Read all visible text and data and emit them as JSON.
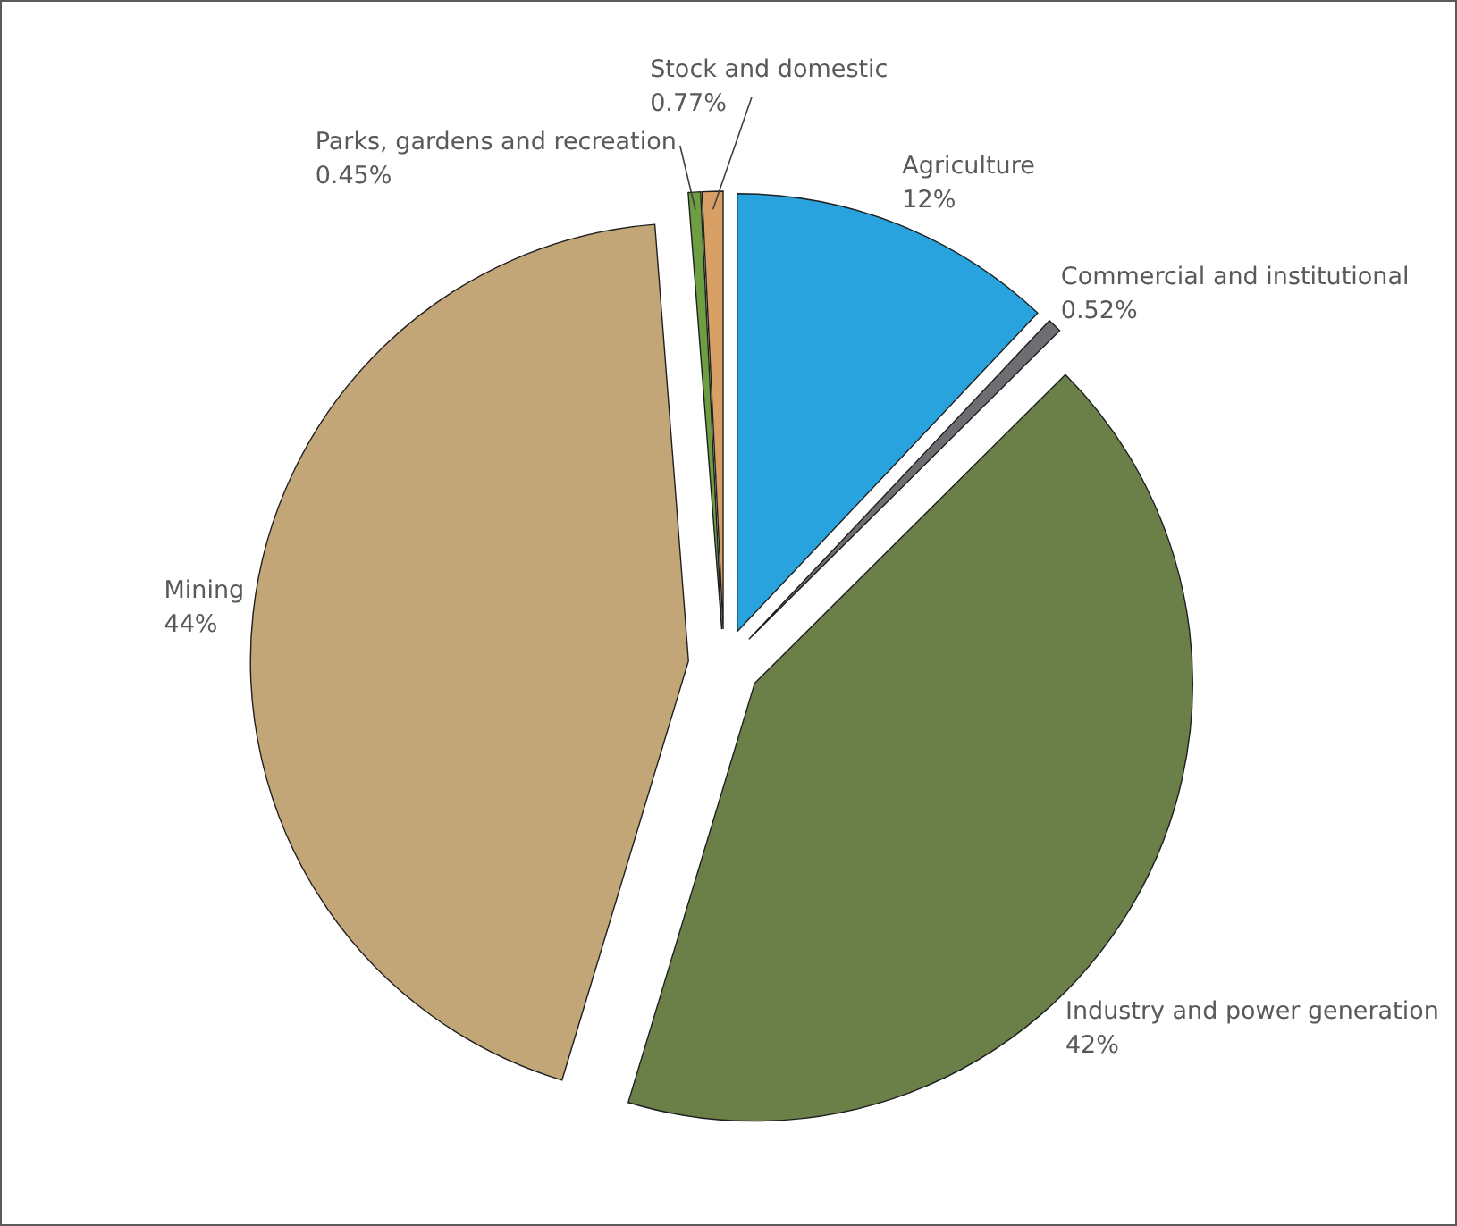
{
  "chart_data": {
    "type": "pie",
    "categories": [
      "Agriculture",
      "Commercial and institutional",
      "Industry and power generation",
      "Mining",
      "Parks, gardens and recreation",
      "Stock and domestic"
    ],
    "values": [
      12,
      0.52,
      42,
      44,
      0.45,
      0.77
    ],
    "value_labels": [
      "12%",
      "0.52%",
      "42%",
      "44%",
      "0.45%",
      "0.77%"
    ],
    "colors": [
      "#29a3dd",
      "#6d6e71",
      "#6b8049",
      "#c3a677",
      "#6d9f42",
      "#d9a066"
    ]
  }
}
